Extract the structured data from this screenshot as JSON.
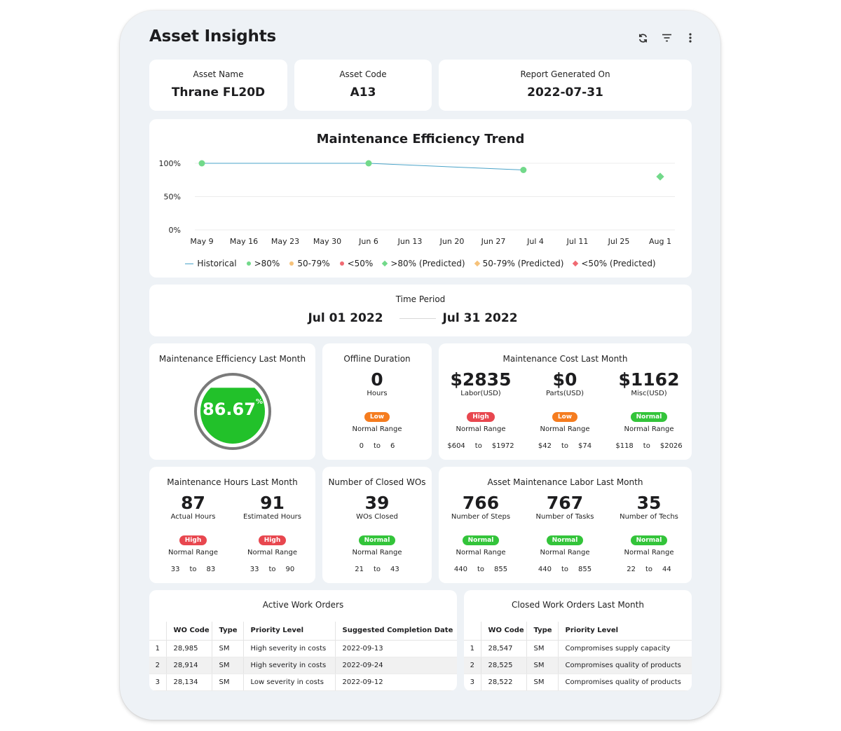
{
  "header": {
    "title": "Asset Insights"
  },
  "asset": {
    "name_label": "Asset Name",
    "name_value": "Thrane FL20D",
    "code_label": "Asset Code",
    "code_value": "A13",
    "report_label": "Report Generated On",
    "report_value": "2022-07-31"
  },
  "chart_data": {
    "type": "line",
    "title": "Maintenance Efficiency Trend",
    "x_ticks": [
      "May 9",
      "May 16",
      "May 23",
      "May 30",
      "Jun 6",
      "Jun 13",
      "Jun 20",
      "Jun 27",
      "Jul 4",
      "Jul 11",
      "Jul 25",
      "Aug 1"
    ],
    "y_ticks": [
      "100%",
      "50%",
      "0%"
    ],
    "ylim": [
      0,
      100
    ],
    "series": [
      {
        "name": "Historical",
        "x": [
          "May 9",
          "Jun 6",
          "Jul 2"
        ],
        "values": [
          100,
          100,
          90
        ]
      },
      {
        "name": ">80% (Predicted)",
        "x": [
          "Aug 1"
        ],
        "values": [
          80
        ]
      }
    ],
    "legend": [
      {
        "label": "Historical",
        "shape": "line",
        "color": "#4aa3c8"
      },
      {
        "label": ">80%",
        "shape": "dot",
        "color": "#72d98a"
      },
      {
        "label": "50-79%",
        "shape": "dot",
        "color": "#f6c27a"
      },
      {
        "label": "<50%",
        "shape": "dot",
        "color": "#f06a72"
      },
      {
        "label": ">80% (Predicted)",
        "shape": "diamond",
        "color": "#72d98a"
      },
      {
        "label": "50-79% (Predicted)",
        "shape": "diamond",
        "color": "#f6c27a"
      },
      {
        "label": "<50% (Predicted)",
        "shape": "diamond",
        "color": "#f06a72"
      }
    ],
    "legend_position": "bottom",
    "grid": true
  },
  "period": {
    "label": "Time Period",
    "start": "Jul 01 2022",
    "end": "Jul 31 2022"
  },
  "efficiency": {
    "label": "Maintenance Efficiency Last Month",
    "value": "86.67",
    "unit": "%",
    "fill_percent": 86.67
  },
  "offline": {
    "label": "Offline Duration",
    "value": "0",
    "unit": "Hours",
    "badge": "Low",
    "range_label": "Normal Range",
    "min": "0",
    "to": "to",
    "max": "6"
  },
  "cost": {
    "label": "Maintenance Cost Last Month",
    "items": [
      {
        "value": "$2835",
        "unit": "Labor(USD)",
        "badge": "High",
        "range_label": "Normal Range",
        "min": "$604",
        "to": "to",
        "max": "$1972"
      },
      {
        "value": "$0",
        "unit": "Parts(USD)",
        "badge": "Low",
        "range_label": "Normal Range",
        "min": "$42",
        "to": "to",
        "max": "$74"
      },
      {
        "value": "$1162",
        "unit": "Misc(USD)",
        "badge": "Normal",
        "range_label": "Normal Range",
        "min": "$118",
        "to": "to",
        "max": "$2026"
      }
    ]
  },
  "hours": {
    "label": "Maintenance Hours Last Month",
    "items": [
      {
        "value": "87",
        "unit": "Actual Hours",
        "badge": "High",
        "range_label": "Normal Range",
        "min": "33",
        "to": "to",
        "max": "83"
      },
      {
        "value": "91",
        "unit": "Estimated Hours",
        "badge": "High",
        "range_label": "Normal Range",
        "min": "33",
        "to": "to",
        "max": "90"
      }
    ]
  },
  "closed": {
    "label": "Number of Closed WOs",
    "value": "39",
    "unit": "WOs Closed",
    "badge": "Normal",
    "range_label": "Normal Range",
    "min": "21",
    "to": "to",
    "max": "43"
  },
  "labor": {
    "label": "Asset Maintenance Labor Last Month",
    "items": [
      {
        "value": "766",
        "unit": "Number of Steps",
        "badge": "Normal",
        "range_label": "Normal Range",
        "min": "440",
        "to": "to",
        "max": "855"
      },
      {
        "value": "767",
        "unit": "Number of Tasks",
        "badge": "Normal",
        "range_label": "Normal Range",
        "min": "440",
        "to": "to",
        "max": "855"
      },
      {
        "value": "35",
        "unit": "Number of Techs",
        "badge": "Normal",
        "range_label": "Normal Range",
        "min": "22",
        "to": "to",
        "max": "44"
      }
    ]
  },
  "active_wo": {
    "label": "Active Work Orders",
    "columns": [
      "WO Code",
      "Type",
      "Priority Level",
      "Suggested Completion Date"
    ],
    "rows": [
      [
        "1",
        "28,985",
        "SM",
        "High severity in costs",
        "2022-09-13"
      ],
      [
        "2",
        "28,914",
        "SM",
        "High severity in costs",
        "2022-09-24"
      ],
      [
        "3",
        "28,134",
        "SM",
        "Low severity in costs",
        "2022-09-12"
      ]
    ]
  },
  "closed_wo": {
    "label": "Closed Work Orders Last Month",
    "columns": [
      "WO Code",
      "Type",
      "Priority Level"
    ],
    "rows": [
      [
        "1",
        "28,547",
        "SM",
        "Compromises supply capacity"
      ],
      [
        "2",
        "28,525",
        "SM",
        "Compromises quality of products"
      ],
      [
        "3",
        "28,522",
        "SM",
        "Compromises quality of products"
      ]
    ]
  },
  "colors": {
    "high": "#e8474f",
    "low": "#f57c1f",
    "normal": "#33c43a",
    "gauge_fill": "#22c12a",
    "gauge_ring": "#7a7a7a"
  }
}
